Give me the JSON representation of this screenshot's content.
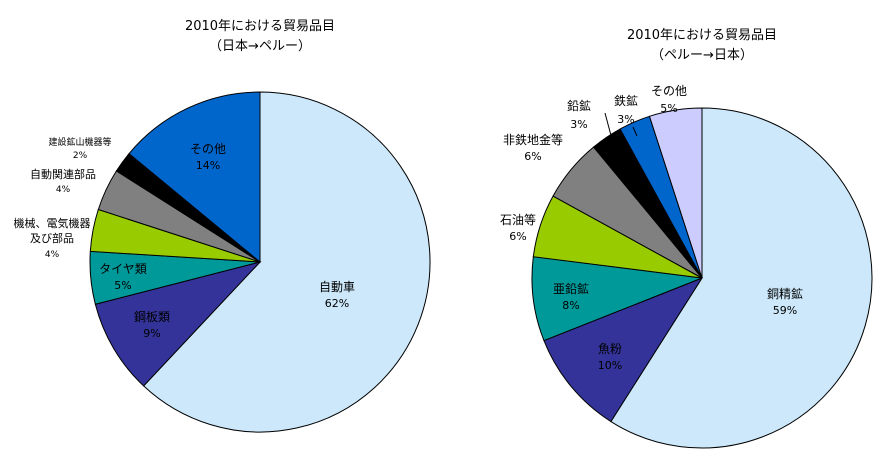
{
  "chart_data": [
    {
      "type": "pie",
      "title": "2010年における貿易品目",
      "subtitle": "（日本→ペルー）",
      "slices": [
        {
          "label": "自動車",
          "value": 62,
          "value_label": "62%",
          "color": "#cce8fa"
        },
        {
          "label": "鋼板類",
          "value": 9,
          "value_label": "9%",
          "color": "#333399"
        },
        {
          "label": "タイヤ類",
          "value": 5,
          "value_label": "5%",
          "color": "#009999"
        },
        {
          "label_lines": [
            "機械、電気機器",
            "及び部品"
          ],
          "value": 4,
          "value_label": "4%",
          "color": "#99cc00"
        },
        {
          "label": "自動関連部品",
          "value": 4,
          "value_label": "4%",
          "color": "#808080"
        },
        {
          "label": "建設鉱山機器等",
          "value": 2,
          "value_label": "2%",
          "color": "#000000"
        },
        {
          "label": "その他",
          "value": 14,
          "value_label": "14%",
          "color": "#0066cc"
        }
      ]
    },
    {
      "type": "pie",
      "title": "2010年における貿易品目",
      "subtitle": "（ペルー→日本）",
      "slices": [
        {
          "label": "銅精鉱",
          "value": 59,
          "value_label": "59%",
          "color": "#cce8fa"
        },
        {
          "label": "魚粉",
          "value": 10,
          "value_label": "10%",
          "color": "#333399"
        },
        {
          "label": "亜鉛鉱",
          "value": 8,
          "value_label": "8%",
          "color": "#009999"
        },
        {
          "label": "石油等",
          "value": 6,
          "value_label": "6%",
          "color": "#99cc00"
        },
        {
          "label": "非鉄地金等",
          "value": 6,
          "value_label": "6%",
          "color": "#808080"
        },
        {
          "label": "鉛鉱",
          "value": 3,
          "value_label": "3%",
          "color": "#000000"
        },
        {
          "label": "鉄鉱",
          "value": 3,
          "value_label": "3%",
          "color": "#0066cc"
        },
        {
          "label": "その他",
          "value": 5,
          "value_label": "5%",
          "color": "#ccccff"
        }
      ]
    }
  ]
}
